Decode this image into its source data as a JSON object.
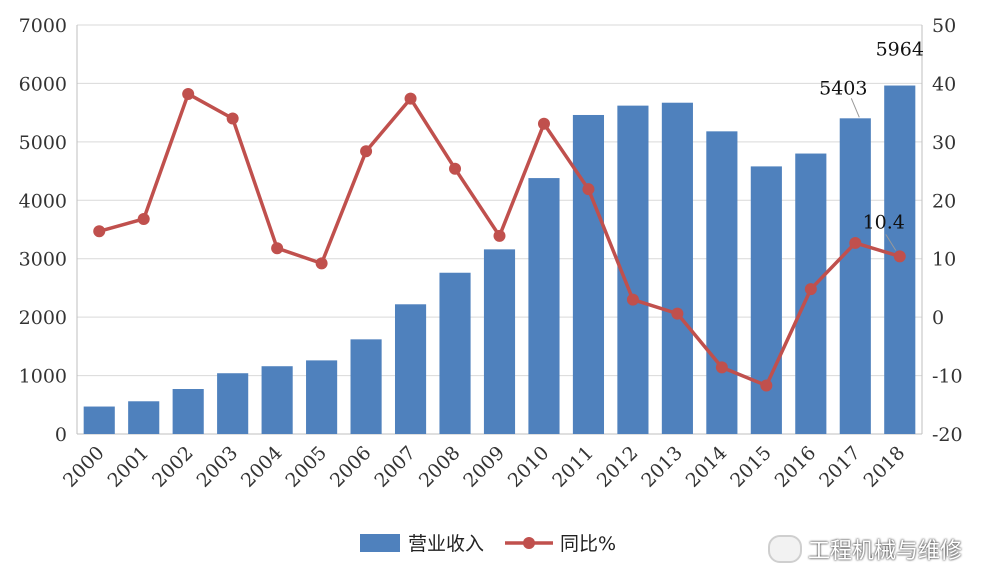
{
  "chart_data": {
    "type": "bar+line",
    "categories": [
      "2000",
      "2001",
      "2002",
      "2003",
      "2004",
      "2005",
      "2006",
      "2007",
      "2008",
      "2009",
      "2010",
      "2011",
      "2012",
      "2013",
      "2014",
      "2015",
      "2016",
      "2017",
      "2018"
    ],
    "series": [
      {
        "name": "营业收入",
        "type": "bar",
        "axis": "left",
        "color": "#4f81bd",
        "values": [
          470,
          560,
          770,
          1040,
          1160,
          1260,
          1620,
          2220,
          2760,
          3160,
          4380,
          5460,
          5620,
          5670,
          5180,
          4580,
          4800,
          5403,
          5964
        ]
      },
      {
        "name": "同比%",
        "type": "line",
        "axis": "right",
        "color": "#c0504d",
        "values": [
          14.7,
          16.8,
          38.2,
          34.0,
          11.8,
          9.2,
          28.4,
          37.4,
          25.4,
          13.9,
          33.1,
          21.9,
          3.0,
          0.6,
          -8.6,
          -11.7,
          4.8,
          12.7,
          10.4
        ]
      }
    ],
    "y_left": {
      "min": 0,
      "max": 7000,
      "ticks": [
        "0",
        "1000",
        "2000",
        "3000",
        "4000",
        "5000",
        "6000",
        "7000"
      ]
    },
    "y_right": {
      "min": -20,
      "max": 50,
      "ticks": [
        "-20",
        "-10",
        "0",
        "10",
        "20",
        "30",
        "40",
        "50"
      ]
    },
    "data_labels": [
      {
        "series": 0,
        "index": 17,
        "text": "5403"
      },
      {
        "series": 0,
        "index": 18,
        "text": "5964"
      },
      {
        "series": 1,
        "index": 18,
        "text": "10.4"
      }
    ],
    "grid": true,
    "legend_position": "bottom"
  },
  "watermark": {
    "text": "工程机械与维修"
  }
}
